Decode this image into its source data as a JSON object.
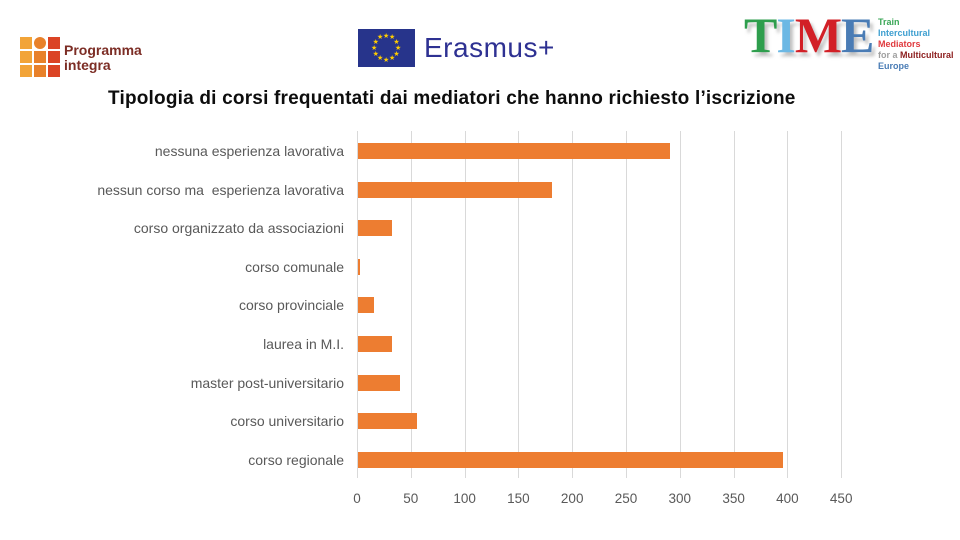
{
  "header": {
    "programma_integra": {
      "line1": "Programma",
      "line2": "integra"
    },
    "erasmus_label": "Erasmus+",
    "time": {
      "t": "T",
      "i": "I",
      "m": "M",
      "e": "E",
      "tagline_line1": "Train",
      "tagline_line2": "Intercultural",
      "tagline_line3": "Mediators",
      "tagline_line4a": "for a ",
      "tagline_line4b": "Multicultural",
      "tagline_line5": "Europe"
    }
  },
  "title": "Tipologia di corsi frequentati dai mediatori che hanno richiesto l’iscrizione",
  "chart_data": {
    "type": "bar",
    "orientation": "horizontal",
    "title": "Tipologia di corsi frequentati dai mediatori che hanno richiesto l’iscrizione",
    "categories": [
      "nessuna esperienza lavorativa",
      "nessun corso ma  esperienza lavorativa",
      "corso organizzato da associazioni",
      "corso comunale",
      "corso provinciale",
      "laurea in M.I.",
      "master post-universitario",
      "corso universitario",
      "corso regionale"
    ],
    "values": [
      290,
      180,
      32,
      2,
      15,
      32,
      39,
      55,
      395
    ],
    "xlabel": "",
    "ylabel": "",
    "xlim": [
      0,
      450
    ],
    "xticks": [
      0,
      50,
      100,
      150,
      200,
      250,
      300,
      350,
      400,
      450
    ],
    "grid": true,
    "legend": false,
    "bar_color": "#ED7D31",
    "gridline_color": "#D9D9D9",
    "axis_text_color": "#595959"
  },
  "colors": {
    "bar": "#ED7D31",
    "gridline": "#D9D9D9",
    "axis_text": "#595959",
    "title_text": "#0D0D0D",
    "eu_flag_blue": "#27348B",
    "erasmus_text": "#2E3192"
  }
}
